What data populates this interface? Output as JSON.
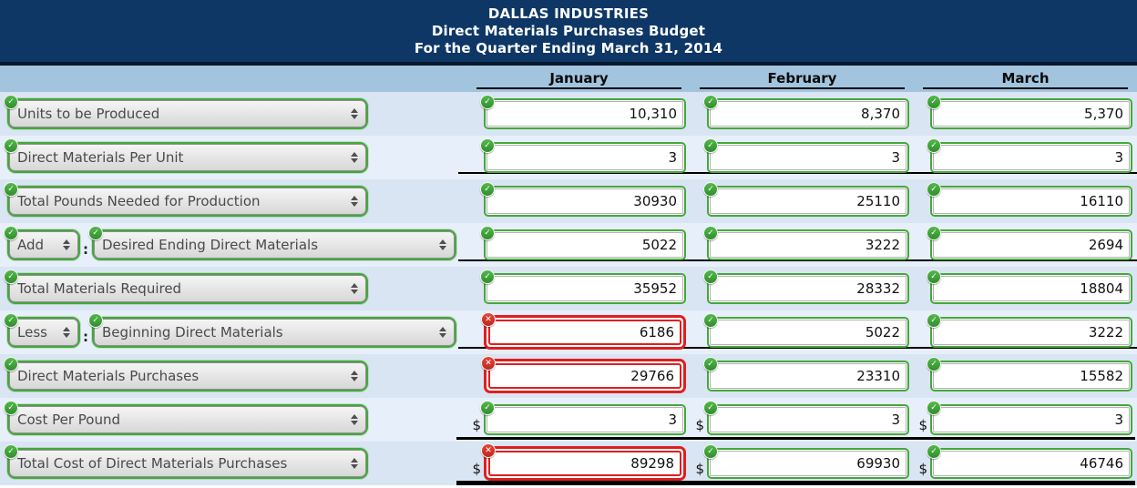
{
  "header": {
    "company": "DALLAS INDUSTRIES",
    "report": "Direct Materials Purchases Budget",
    "period": "For the Quarter Ending March 31, 2014"
  },
  "columns": [
    "January",
    "February",
    "March"
  ],
  "currency_symbol": "$",
  "icons": {
    "valid": "✓",
    "error": "✕"
  },
  "colors": {
    "banner_navy": "#0e3766",
    "column_band_blue": "#a2c4de",
    "row_dark": "#d9e5f3",
    "row_light": "#e7effa",
    "valid_green": "#44a83b",
    "error_red": "#df1f1f"
  },
  "rows": [
    {
      "label": "Units to be Produced",
      "values": [
        "10,310",
        "8,370",
        "5,370"
      ],
      "status": [
        "ok",
        "ok",
        "ok"
      ]
    },
    {
      "label": "Direct Materials Per Unit",
      "values": [
        "3",
        "3",
        "3"
      ],
      "status": [
        "ok",
        "ok",
        "ok"
      ],
      "underline": "single"
    },
    {
      "label": "Total Pounds Needed for Production",
      "values": [
        "30930",
        "25110",
        "16110"
      ],
      "status": [
        "ok",
        "ok",
        "ok"
      ]
    },
    {
      "prefix": "Add",
      "separator": ":",
      "label": "Desired Ending Direct Materials",
      "values": [
        "5022",
        "3222",
        "2694"
      ],
      "status": [
        "ok",
        "ok",
        "ok"
      ],
      "underline": "single"
    },
    {
      "label": "Total Materials Required",
      "values": [
        "35952",
        "28332",
        "18804"
      ],
      "status": [
        "ok",
        "ok",
        "ok"
      ]
    },
    {
      "prefix": "Less",
      "separator": ":",
      "label": "Beginning Direct Materials",
      "values": [
        "6186",
        "5022",
        "3222"
      ],
      "status": [
        "error",
        "ok",
        "ok"
      ],
      "underline": "single"
    },
    {
      "label": "Direct Materials Purchases",
      "values": [
        "29766",
        "23310",
        "15582"
      ],
      "status": [
        "error",
        "ok",
        "ok"
      ]
    },
    {
      "label": "Cost Per Pound",
      "values": [
        "3",
        "3",
        "3"
      ],
      "status": [
        "ok",
        "ok",
        "ok"
      ],
      "currency": true,
      "underline": "single-below"
    },
    {
      "label": "Total Cost of Direct Materials Purchases",
      "values": [
        "89298",
        "69930",
        "46746"
      ],
      "status": [
        "error",
        "ok",
        "ok"
      ],
      "currency": true,
      "underline": "double"
    }
  ]
}
